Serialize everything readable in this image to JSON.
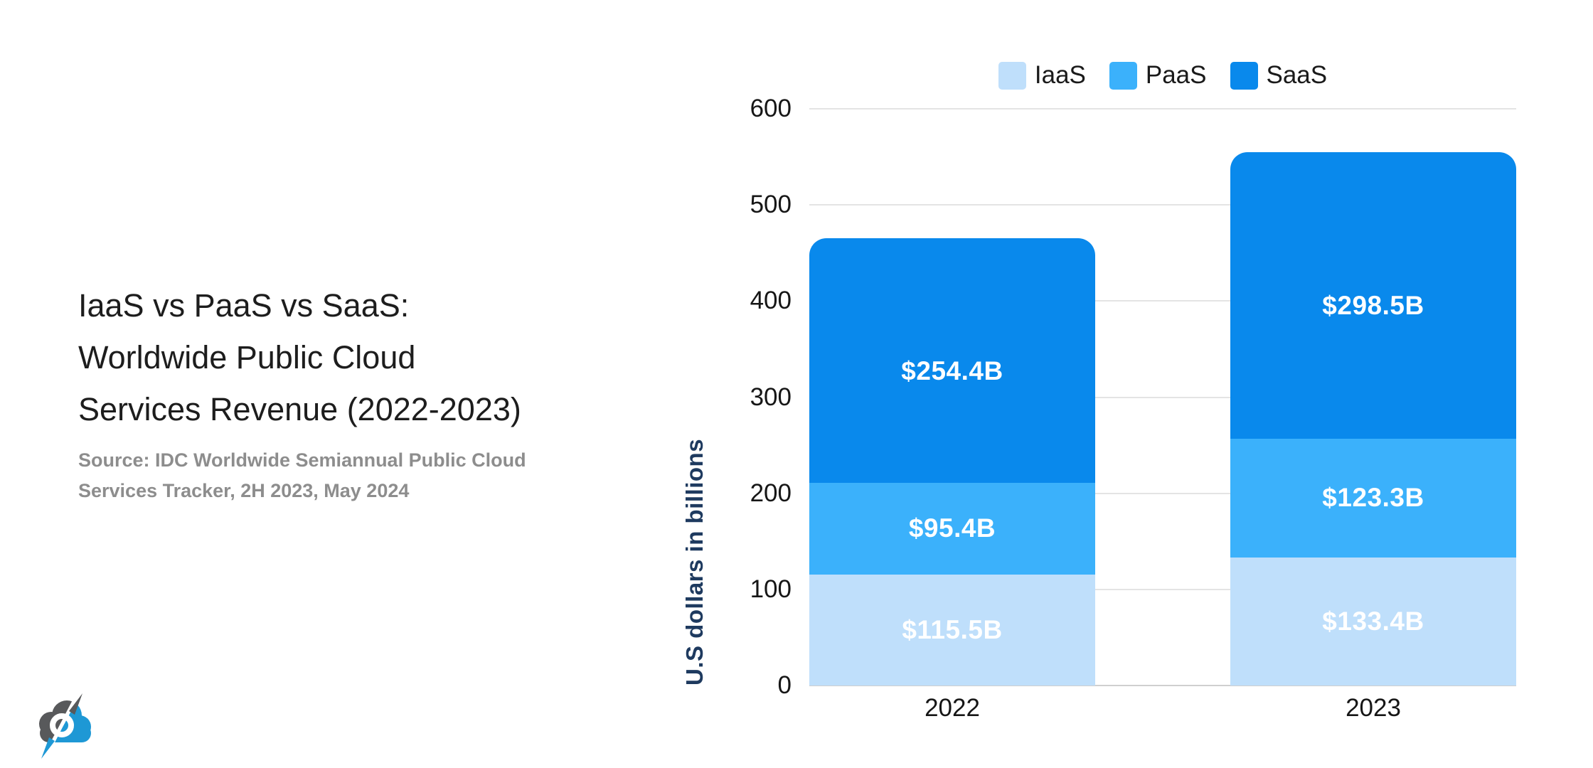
{
  "left_panel": {
    "title_lines": [
      "IaaS vs PaaS vs SaaS:",
      "Worldwide Public Cloud",
      "Services Revenue (2022-2023)"
    ],
    "source_lines": [
      "Source: IDC Worldwide Semiannual Public Cloud",
      "Services Tracker, 2H 2023, May 2024"
    ]
  },
  "logo": {
    "name": "cloudwards-cloud-compass-logo",
    "gray": "#58595b",
    "blue": "#1e98d5"
  },
  "chart_data": {
    "type": "bar",
    "stacked": true,
    "categories": [
      "2022",
      "2023"
    ],
    "series": [
      {
        "name": "IaaS",
        "color": "#bfdffb",
        "values": [
          115.5,
          133.4
        ],
        "labels": [
          "$115.5B",
          "$133.4B"
        ]
      },
      {
        "name": "PaaS",
        "color": "#3bb1fb",
        "values": [
          95.4,
          123.3
        ],
        "labels": [
          "$95.4B",
          "$123.3B"
        ]
      },
      {
        "name": "SaaS",
        "color": "#0989ec",
        "values": [
          254.4,
          298.5
        ],
        "labels": [
          "$254.4B",
          "$298.5B"
        ]
      }
    ],
    "totals": [
      465.3,
      555.2
    ],
    "title": "IaaS vs PaaS vs SaaS: Worldwide Public Cloud Services Revenue (2022-2023)",
    "xlabel": "",
    "ylabel": "U.S dollars in billions",
    "ylim": [
      0,
      600
    ],
    "yticks": [
      0,
      100,
      200,
      300,
      400,
      500,
      600
    ],
    "grid": true,
    "legend_position": "top",
    "grid_color": "#e4e4e4",
    "value_label_color": "#ffffff"
  }
}
